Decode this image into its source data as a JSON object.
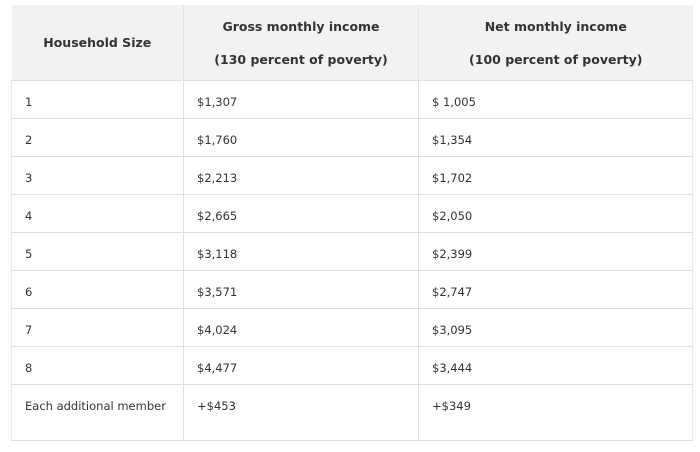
{
  "table": {
    "header": {
      "household_size": "Household Size",
      "gross": {
        "title": "Gross monthly income",
        "note": "(130 percent of poverty)"
      },
      "net": {
        "title": "Net monthly income",
        "note": "(100 percent of poverty)"
      }
    },
    "rows": [
      [
        "1",
        "$1,307",
        "$ 1,005"
      ],
      [
        "2",
        "$1,760",
        "$1,354"
      ],
      [
        "3",
        "$2,213",
        "$1,702"
      ],
      [
        "4",
        "$2,665",
        "$2,050"
      ],
      [
        "5",
        "$3,118",
        "$2,399"
      ],
      [
        "6",
        "$3,571",
        "$2,747"
      ],
      [
        "7",
        "$4,024",
        "$3,095"
      ],
      [
        "8",
        "$4,477",
        "$3,444"
      ],
      [
        "Each additional member",
        "+$453",
        "+$349"
      ]
    ]
  }
}
